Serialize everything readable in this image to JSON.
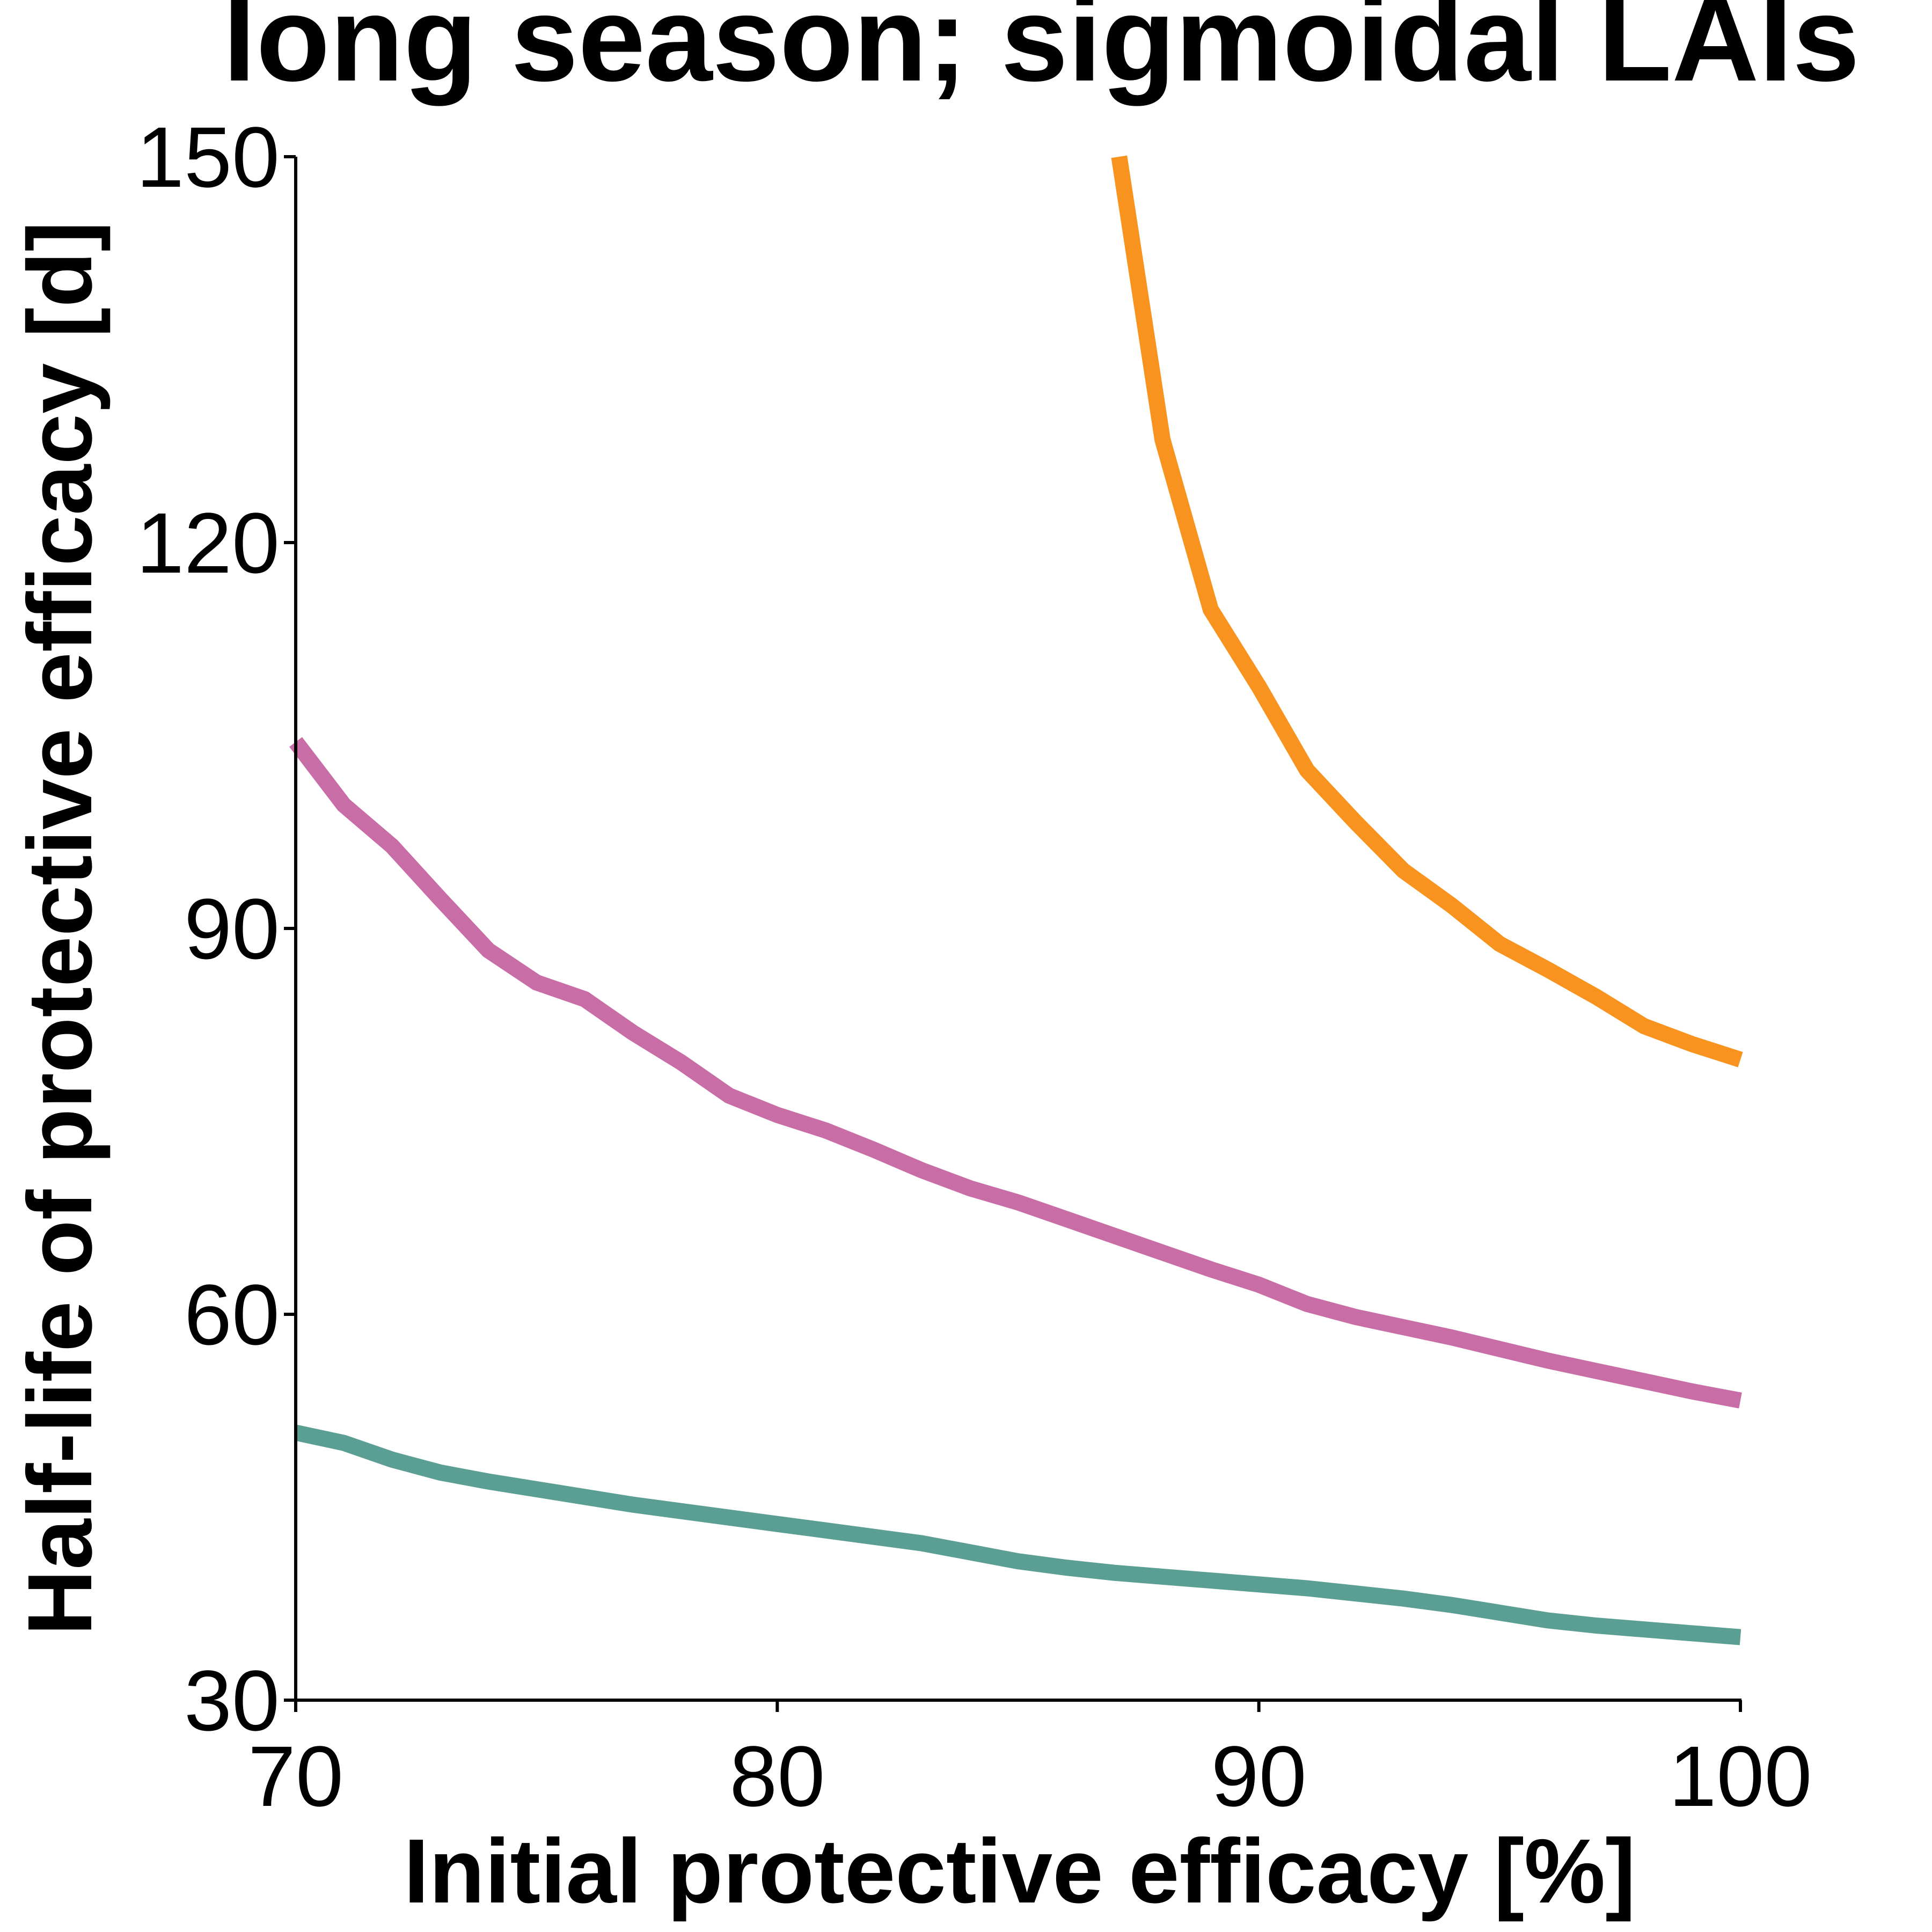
{
  "chart_data": {
    "type": "line",
    "title": "long season; sigmoidal LAIs",
    "xlabel": "Initial protective efficacy [%]",
    "ylabel": "Half-life of protective efficacy [d]",
    "xlim": [
      70,
      100
    ],
    "ylim": [
      30,
      150
    ],
    "xticks": [
      70,
      80,
      90,
      100
    ],
    "yticks": [
      30,
      60,
      90,
      120,
      150
    ],
    "grid": false,
    "legend": "none",
    "series": [
      {
        "color": "#F7931E",
        "x": [
          87.1,
          88,
          89,
          90,
          91,
          92,
          93,
          94,
          95,
          96,
          97,
          98,
          99,
          100
        ],
        "y": [
          150,
          128,
          114.8,
          108.8,
          102.3,
          98.3,
          94.5,
          91.8,
          88.8,
          86.8,
          84.7,
          82.4,
          81,
          79.8
        ]
      },
      {
        "color": "#C96DA6",
        "x": [
          70,
          71,
          72,
          73,
          74,
          75,
          76,
          77,
          78,
          79,
          80,
          81,
          82,
          83,
          84,
          85,
          86,
          87,
          88,
          89,
          90,
          91,
          92,
          93,
          94,
          95,
          96,
          97,
          98,
          99,
          100
        ],
        "y": [
          104.5,
          99.6,
          96.4,
          92.3,
          88.3,
          85.8,
          84.5,
          81.9,
          79.6,
          77,
          75.5,
          74.3,
          72.8,
          71.2,
          69.8,
          68.7,
          67.4,
          66.1,
          64.8,
          63.5,
          62.3,
          60.8,
          59.8,
          59,
          58.2,
          57.3,
          56.4,
          55.6,
          54.8,
          54,
          53.3
        ]
      },
      {
        "color": "#5A9E94",
        "x": [
          70,
          71,
          72,
          73,
          74,
          75,
          76,
          77,
          78,
          79,
          80,
          81,
          82,
          83,
          84,
          85,
          86,
          87,
          88,
          89,
          90,
          91,
          92,
          93,
          94,
          95,
          96,
          97,
          98,
          99,
          100
        ],
        "y": [
          50.8,
          50,
          48.7,
          47.7,
          47,
          46.4,
          45.8,
          45.2,
          44.7,
          44.2,
          43.7,
          43.2,
          42.7,
          42.2,
          41.5,
          40.8,
          40.3,
          39.9,
          39.6,
          39.3,
          39,
          38.7,
          38.3,
          37.9,
          37.4,
          36.8,
          36.2,
          35.8,
          35.5,
          35.2,
          34.9
        ]
      }
    ]
  }
}
